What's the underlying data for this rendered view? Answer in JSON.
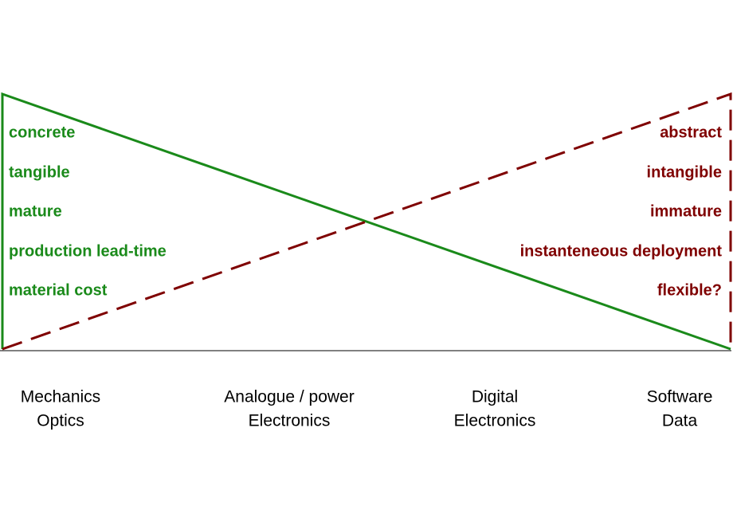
{
  "left_attributes": [
    "concrete",
    "tangible",
    "mature",
    "production lead-time",
    "material cost"
  ],
  "right_attributes": [
    "abstract",
    "intangible",
    "immature",
    "instanteneous deployment",
    "flexible?"
  ],
  "domains": [
    {
      "lines": [
        "Mechanics",
        "Optics"
      ]
    },
    {
      "lines": [
        "Analogue / power",
        "Electronics"
      ]
    },
    {
      "lines": [
        "Digital",
        "Electronics"
      ]
    },
    {
      "lines": [
        "Software",
        "Data"
      ]
    }
  ]
}
